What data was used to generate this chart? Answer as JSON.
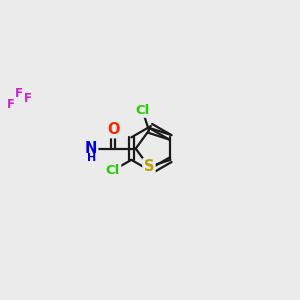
{
  "bg_color": "#ebebeb",
  "bond_color": "#1a1a1a",
  "bond_width": 1.6,
  "atom_colors": {
    "S": "#b8a000",
    "Cl": "#22cc00",
    "O": "#ff2200",
    "N": "#0000dd",
    "F": "#cc22cc",
    "C": "#1a1a1a"
  },
  "font_size": 9.5,
  "figsize": [
    3.0,
    3.0
  ],
  "dpi": 100
}
